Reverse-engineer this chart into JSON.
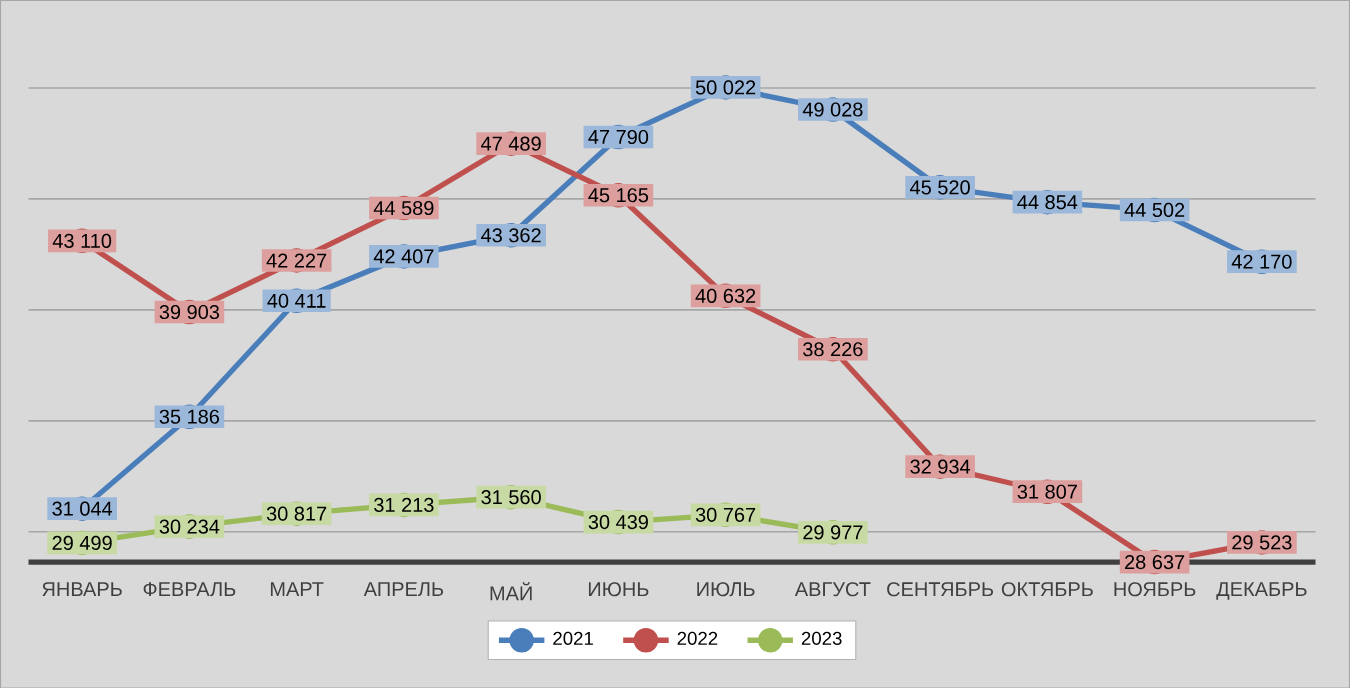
{
  "chart_data": {
    "type": "line",
    "categories": [
      "ЯНВАРЬ",
      "ФЕВРАЛЬ",
      "МАРТ",
      "АПРЕЛЬ",
      "МАЙ",
      "ИЮНЬ",
      "ИЮЛЬ",
      "АВГУСТ",
      "СЕНТЯБРЬ",
      "ОКТЯБРЬ",
      "НОЯБРЬ",
      "ДЕКАБРЬ"
    ],
    "series": [
      {
        "name": "2021",
        "color": "#4a7ebb",
        "values": [
          31044,
          35186,
          40411,
          42407,
          43362,
          47790,
          50022,
          49028,
          45520,
          44854,
          44502,
          42170
        ],
        "value_labels": [
          "31 044",
          "35 186",
          "40 411",
          "42 407",
          "43 362",
          "47 790",
          "50 022",
          "49 028",
          "45 520",
          "44 854",
          "44 502",
          "42 170"
        ]
      },
      {
        "name": "2022",
        "color": "#c0504d",
        "values": [
          43110,
          39903,
          42227,
          44589,
          47489,
          45165,
          40632,
          38226,
          32934,
          31807,
          28637,
          29523
        ],
        "value_labels": [
          "43 110",
          "39 903",
          "42 227",
          "44 589",
          "47 489",
          "45 165",
          "40 632",
          "38 226",
          "32 934",
          "31 807",
          "28 637",
          "29 523"
        ]
      },
      {
        "name": "2023",
        "color": "#9bbb59",
        "values": [
          29499,
          30234,
          30817,
          31213,
          31560,
          30439,
          30767,
          29977,
          null,
          null,
          null,
          null
        ],
        "value_labels": [
          "29 499",
          "30 234",
          "30 817",
          "31 213",
          "31 560",
          "30 439",
          "30 767",
          "29 977",
          null,
          null,
          null,
          null
        ]
      }
    ],
    "tick_labels": "x",
    "grid": "y",
    "legend": "bottom",
    "marker": "circle",
    "line_style": "solid"
  }
}
